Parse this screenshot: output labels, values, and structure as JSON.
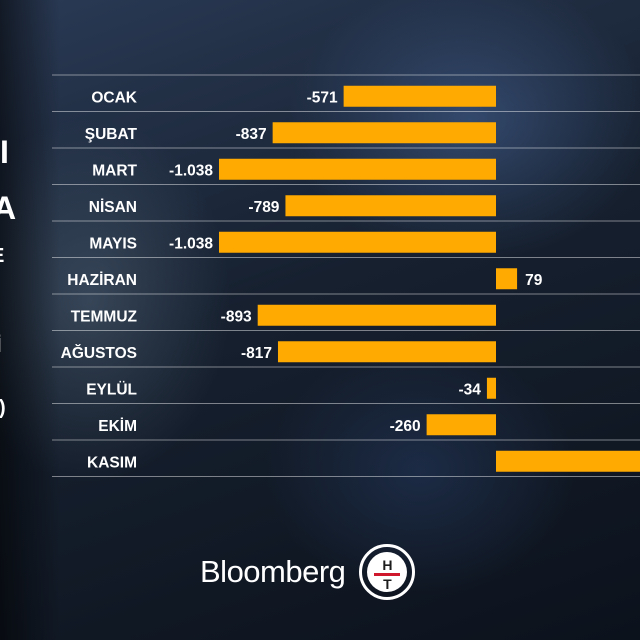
{
  "chart_data": {
    "type": "bar",
    "orientation": "horizontal",
    "categories": [
      "OCAK",
      "ŞUBAT",
      "MART",
      "NİSAN",
      "MAYIS",
      "HAZİRAN",
      "TEMMUZ",
      "AĞUSTOS",
      "EYLÜL",
      "EKİM",
      "KASIM"
    ],
    "values": [
      -571,
      -837,
      -1038,
      -789,
      -1038,
      79,
      -893,
      -817,
      -34,
      -260,
      null
    ],
    "value_labels": [
      "-571",
      "-837",
      "-1.038",
      "-789",
      "-1.038",
      "79",
      "-893",
      "-817",
      "-34",
      "-260",
      ""
    ],
    "partially_visible_value": {
      "category": "KASIM",
      "min_visible": 500
    },
    "title": "",
    "xlabel": "",
    "ylabel": "",
    "xlim": [
      -1100,
      550
    ],
    "grid": true,
    "legend": "none",
    "bar_color": "#FFAA00"
  },
  "logos": {
    "bloomberg": "Bloomberg",
    "ht_top": "H",
    "ht_bottom": "T"
  },
  "edge_fragments": [
    "I",
    "A",
    "E",
    "İ",
    ")"
  ],
  "colors": {
    "bar": "#FFAA00",
    "text": "#FFFFFF",
    "accent_red": "#D0182C"
  }
}
